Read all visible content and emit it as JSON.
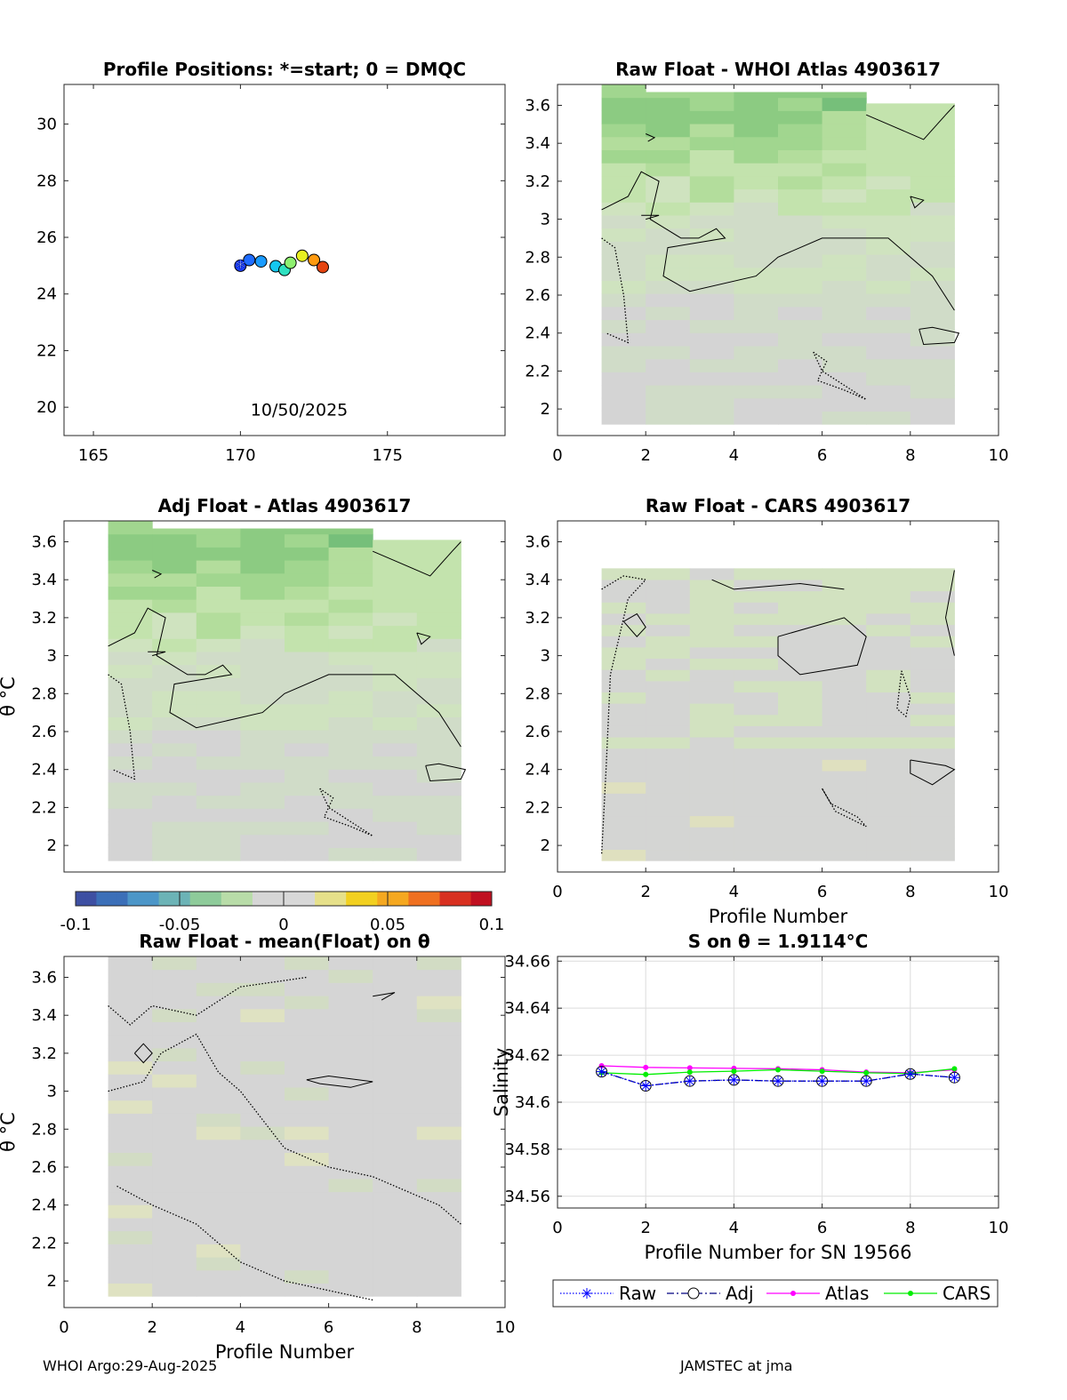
{
  "footer": {
    "left": "WHOI Argo:29-Aug-2025",
    "right": "JAMSTEC at jma"
  },
  "colors": {
    "axis": "#000000",
    "grid": "#dcdcdc",
    "bg_heatmap": "#d4d4d4",
    "atlas_line": "#ff00ff",
    "cars_line": "#00ee00",
    "raw_marker": "#0000ff",
    "adj_line": "#000080"
  },
  "chart_data": [
    {
      "id": "positions",
      "type": "scatter",
      "title": "Profile Positions: *=start; 0 = DMQC",
      "xlim": [
        164,
        179
      ],
      "ylim": [
        19,
        31.4
      ],
      "xticks": [
        165,
        170,
        175
      ],
      "yticks": [
        20,
        22,
        24,
        26,
        28,
        30
      ],
      "annotation": "10/50/2025",
      "points": [
        {
          "lon": 170.0,
          "lat": 25.0,
          "color": "#1d3fff"
        },
        {
          "lon": 170.3,
          "lat": 25.2,
          "color": "#1f6cff"
        },
        {
          "lon": 170.7,
          "lat": 25.15,
          "color": "#1a9bff"
        },
        {
          "lon": 171.2,
          "lat": 24.98,
          "color": "#14c8f0"
        },
        {
          "lon": 171.5,
          "lat": 24.85,
          "color": "#2ee0c0"
        },
        {
          "lon": 171.7,
          "lat": 25.1,
          "color": "#8ef070"
        },
        {
          "lon": 172.1,
          "lat": 25.35,
          "color": "#e8f020"
        },
        {
          "lon": 172.5,
          "lat": 25.2,
          "color": "#ff9a10"
        },
        {
          "lon": 172.8,
          "lat": 24.95,
          "color": "#e44410"
        }
      ],
      "start_marker": "*"
    },
    {
      "id": "raw-atlas",
      "type": "heatmap",
      "title": "Raw Float - WHOI Atlas  4903617",
      "xlim": [
        0,
        10
      ],
      "ylim": [
        1.86,
        3.71
      ],
      "xticks": [
        0,
        2,
        4,
        6,
        8,
        10
      ],
      "yticks": [
        2,
        2.2,
        2.4,
        2.6,
        2.8,
        3,
        3.2,
        3.4,
        3.6
      ],
      "xlabel": "",
      "ylabel": ""
    },
    {
      "id": "adj-atlas",
      "type": "heatmap",
      "title": "Adj Float - Atlas  4903617",
      "xlim": [
        0,
        10
      ],
      "ylim": [
        1.86,
        3.71
      ],
      "xticks": [],
      "yticks": [
        2,
        2.2,
        2.4,
        2.6,
        2.8,
        3,
        3.2,
        3.4,
        3.6
      ],
      "xlabel": "",
      "ylabel": "θ °C"
    },
    {
      "id": "raw-cars",
      "type": "heatmap",
      "title": "Raw Float - CARS  4903617",
      "xlim": [
        0,
        10
      ],
      "ylim": [
        1.86,
        3.71
      ],
      "xticks": [
        0,
        2,
        4,
        6,
        8,
        10
      ],
      "yticks": [
        2,
        2.2,
        2.4,
        2.6,
        2.8,
        3,
        3.2,
        3.4,
        3.6
      ],
      "xlabel": "Profile Number",
      "ylabel": ""
    },
    {
      "id": "colorbar",
      "type": "colorbar",
      "range": [
        -0.1,
        0.1
      ],
      "ticks": [
        "-0.1",
        "-0.05",
        "0",
        "0.05",
        "0.1"
      ]
    },
    {
      "id": "raw-mean",
      "type": "heatmap",
      "title": "Raw Float - mean(Float) on θ",
      "xlim": [
        0,
        10
      ],
      "ylim": [
        1.86,
        3.71
      ],
      "xticks": [
        0,
        2,
        4,
        6,
        8,
        10
      ],
      "yticks": [
        2,
        2.2,
        2.4,
        2.6,
        2.8,
        3,
        3.2,
        3.4,
        3.6
      ],
      "xlabel": "Profile Number",
      "ylabel": "θ °C"
    },
    {
      "id": "s-on-theta",
      "type": "line",
      "title": "S on θ = 1.9114°C",
      "xlim": [
        0,
        10
      ],
      "ylim": [
        34.555,
        34.662
      ],
      "xticks": [
        0,
        2,
        4,
        6,
        8,
        10
      ],
      "yticks": [
        34.56,
        34.58,
        34.6,
        34.62,
        34.64,
        34.66
      ],
      "xlabel": "Profile Number for SN 19566",
      "ylabel": "Salinity",
      "x": [
        1,
        2,
        3,
        4,
        5,
        6,
        7,
        8,
        9
      ],
      "series": [
        {
          "name": "Raw",
          "values": [
            34.613,
            34.607,
            34.609,
            34.6095,
            34.609,
            34.609,
            34.609,
            34.612,
            34.6105
          ]
        },
        {
          "name": "Adj",
          "values": [
            34.613,
            34.607,
            34.609,
            34.6095,
            34.609,
            34.609,
            34.609,
            34.612,
            34.6105
          ]
        },
        {
          "name": "Atlas",
          "values": [
            34.6155,
            34.6148,
            34.6146,
            34.6144,
            34.6142,
            34.6138,
            34.6128,
            34.6125,
            34.6138
          ]
        },
        {
          "name": "CARS",
          "values": [
            34.6125,
            34.6118,
            34.6128,
            34.6132,
            34.6138,
            34.6132,
            34.6125,
            34.6122,
            34.6142
          ]
        }
      ],
      "legend": [
        "Raw",
        "Adj",
        "Atlas",
        "CARS"
      ],
      "grid": true
    }
  ]
}
